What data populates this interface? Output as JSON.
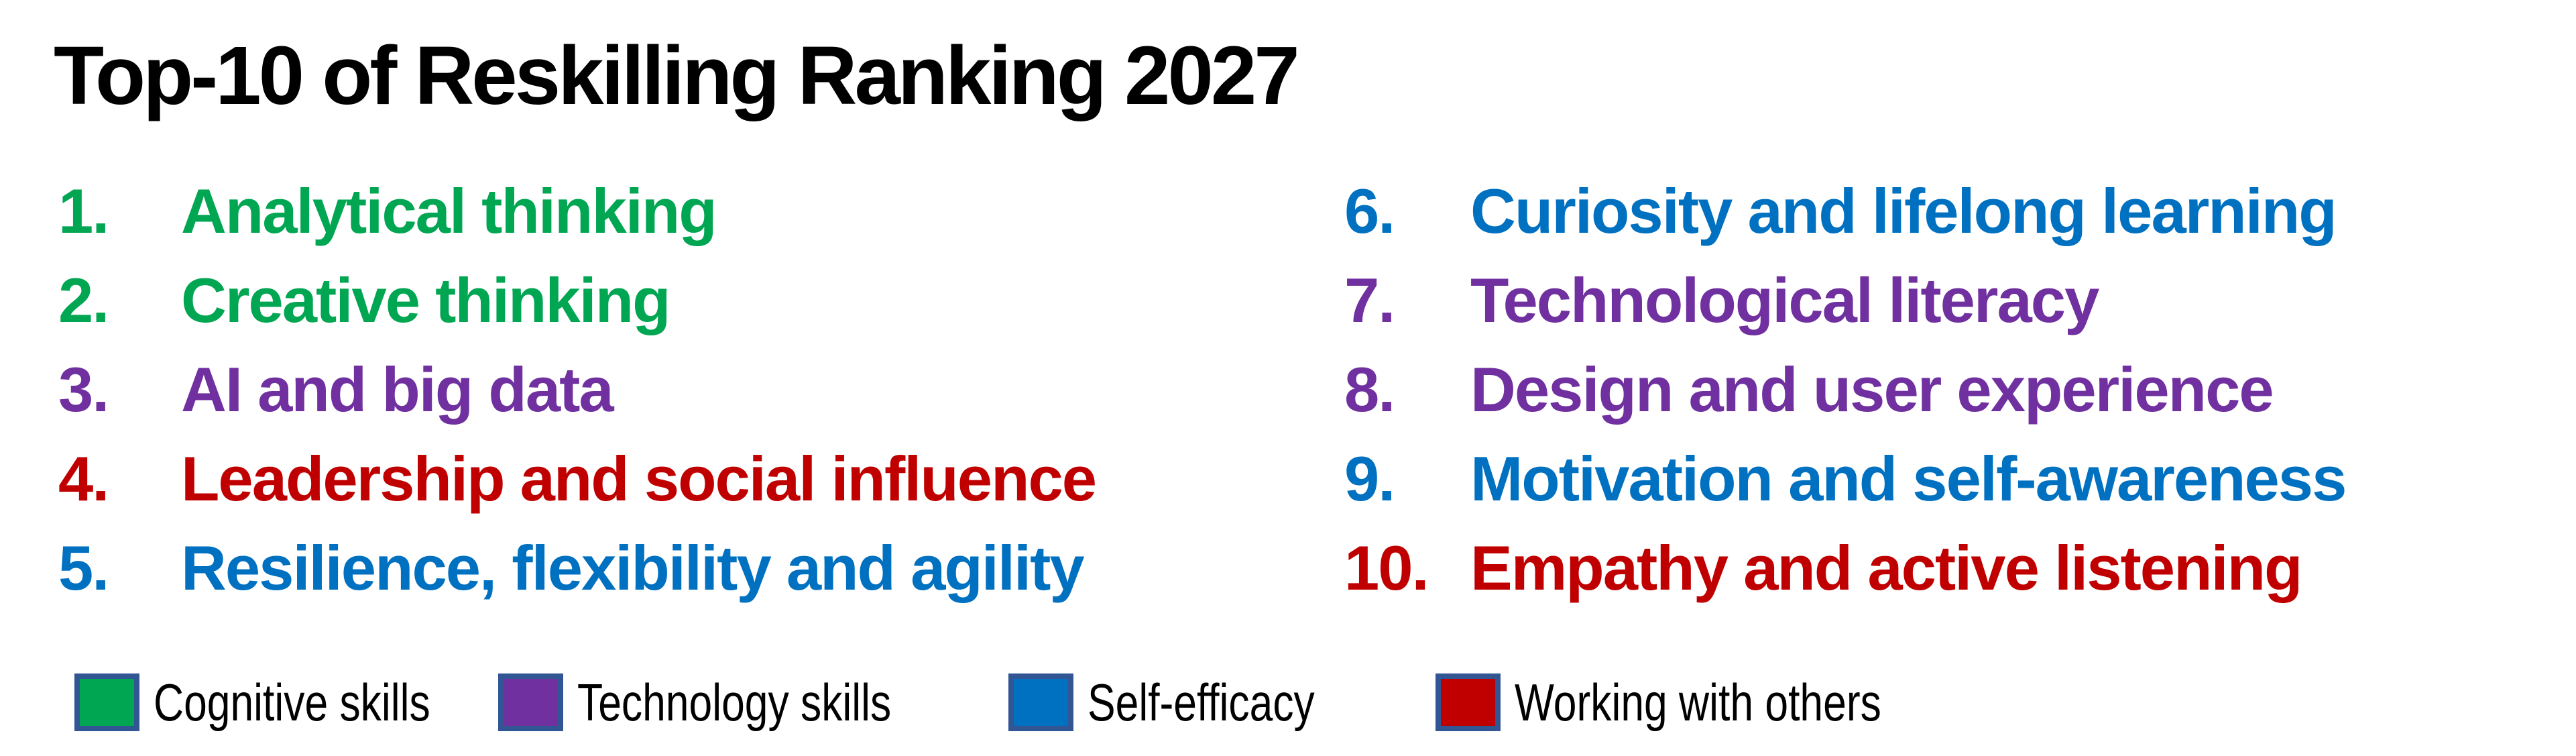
{
  "title": "Top-10 of Reskilling Ranking 2027",
  "colors": {
    "background": "#FFFFFF",
    "title_text": "#000000",
    "legend_text": "#000000",
    "swatch_border": "#325694",
    "cognitive_skills": "#00A651",
    "technology_skills": "#7030A0",
    "self_efficacy": "#0070C0",
    "working_with_others": "#C00000"
  },
  "list": {
    "left": [
      {
        "number": "1.",
        "label": "Analytical thinking",
        "category": "Cognitive skills",
        "color": "#00A651"
      },
      {
        "number": "2.",
        "label": "Creative thinking",
        "category": "Cognitive skills",
        "color": "#00A651"
      },
      {
        "number": "3.",
        "label": "AI and big data",
        "category": "Technology skills",
        "color": "#7030A0"
      },
      {
        "number": "4.",
        "label": "Leadership and social influence",
        "category": "Working with others",
        "color": "#C00000"
      },
      {
        "number": "5.",
        "label": "Resilience, flexibility and agility",
        "category": "Self-efficacy",
        "color": "#0070C0"
      }
    ],
    "right": [
      {
        "number": "6.",
        "label": "Curiosity and lifelong learning",
        "category": "Self-efficacy",
        "color": "#0070C0"
      },
      {
        "number": "7.",
        "label": "Technological literacy",
        "category": "Technology skills",
        "color": "#7030A0"
      },
      {
        "number": "8.",
        "label": "Design and user experience",
        "category": "Technology skills",
        "color": "#7030A0"
      },
      {
        "number": "9.",
        "label": "Motivation and self-awareness",
        "category": "Self-efficacy",
        "color": "#0070C0"
      },
      {
        "number": "10.",
        "label": "Empathy and active listening",
        "category": "Working with others",
        "color": "#C00000"
      }
    ]
  },
  "legend": {
    "items": [
      {
        "label": "Cognitive skills",
        "color": "#00A651"
      },
      {
        "label": "Technology skills",
        "color": "#7030A0"
      },
      {
        "label": "Self-efficacy",
        "color": "#0070C0"
      },
      {
        "label": "Working with others",
        "color": "#C00000"
      }
    ]
  }
}
